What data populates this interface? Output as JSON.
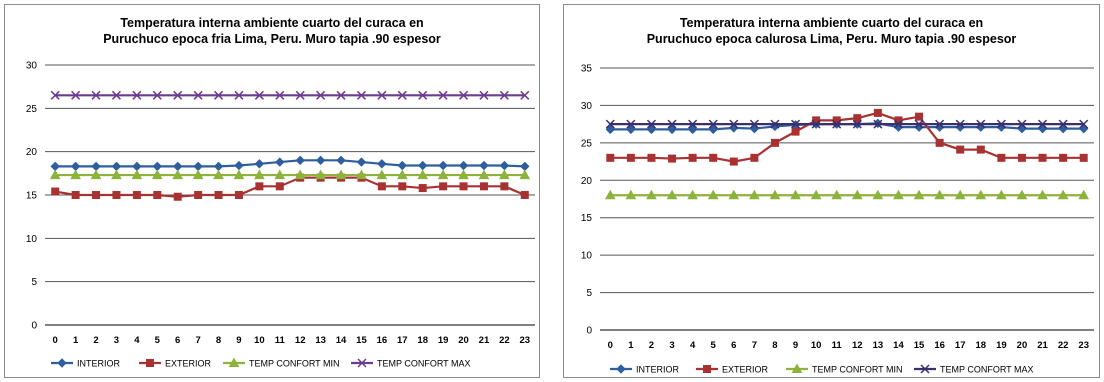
{
  "chart_data": [
    {
      "type": "line",
      "title": [
        "Temperatura interna ambiente cuarto del curaca en",
        "Puruchuco epoca fria Lima, Peru. Muro tapia .90 espesor"
      ],
      "categories": [
        "0",
        "1",
        "2",
        "3",
        "4",
        "5",
        "6",
        "7",
        "8",
        "9",
        "10",
        "11",
        "12",
        "13",
        "14",
        "15",
        "16",
        "17",
        "18",
        "19",
        "20",
        "21",
        "22",
        "23"
      ],
      "ylim": [
        0,
        30
      ],
      "yticks": [
        0,
        5,
        10,
        15,
        20,
        25,
        30
      ],
      "grid": true,
      "legend_position": "bottom",
      "series": [
        {
          "name": "INTERIOR",
          "color": "#2e5e9e",
          "marker": "diamond",
          "values": [
            18.3,
            18.3,
            18.3,
            18.3,
            18.3,
            18.3,
            18.3,
            18.3,
            18.3,
            18.4,
            18.6,
            18.8,
            19.0,
            19.0,
            19.0,
            18.8,
            18.6,
            18.4,
            18.4,
            18.4,
            18.4,
            18.4,
            18.4,
            18.3
          ]
        },
        {
          "name": "EXTERIOR",
          "color": "#a83232",
          "marker": "square",
          "values": [
            15.4,
            15.0,
            15.0,
            15.0,
            15.0,
            15.0,
            14.8,
            15.0,
            15.0,
            15.0,
            16.0,
            16.0,
            17.0,
            17.0,
            17.0,
            17.0,
            16.0,
            16.0,
            15.8,
            16.0,
            16.0,
            16.0,
            16.0,
            15.0
          ]
        },
        {
          "name": "TEMP CONFORT MIN",
          "color": "#8db33c",
          "marker": "triangle",
          "values": [
            17.3,
            17.3,
            17.3,
            17.3,
            17.3,
            17.3,
            17.3,
            17.3,
            17.3,
            17.3,
            17.3,
            17.3,
            17.3,
            17.3,
            17.3,
            17.3,
            17.3,
            17.3,
            17.3,
            17.3,
            17.3,
            17.3,
            17.3,
            17.3
          ]
        },
        {
          "name": "TEMP CONFORT MAX",
          "color": "#6a3d8f",
          "marker": "x",
          "values": [
            26.5,
            26.5,
            26.5,
            26.5,
            26.5,
            26.5,
            26.5,
            26.5,
            26.5,
            26.5,
            26.5,
            26.5,
            26.5,
            26.5,
            26.5,
            26.5,
            26.5,
            26.5,
            26.5,
            26.5,
            26.5,
            26.5,
            26.5,
            26.5
          ]
        }
      ]
    },
    {
      "type": "line",
      "title": [
        "Temperatura interna ambiente cuarto del curaca en",
        "Puruchuco epoca calurosa Lima, Peru. Muro tapia .90 espesor"
      ],
      "categories": [
        "0",
        "1",
        "2",
        "3",
        "4",
        "5",
        "6",
        "7",
        "8",
        "9",
        "10",
        "11",
        "12",
        "13",
        "14",
        "15",
        "16",
        "17",
        "18",
        "19",
        "20",
        "21",
        "22",
        "23"
      ],
      "ylim": [
        0,
        35
      ],
      "yticks": [
        0,
        5,
        10,
        15,
        20,
        25,
        30,
        35
      ],
      "grid": true,
      "legend_position": "bottom",
      "series": [
        {
          "name": "INTERIOR",
          "color": "#2e5e9e",
          "marker": "diamond",
          "values": [
            26.8,
            26.8,
            26.8,
            26.8,
            26.8,
            26.8,
            27.0,
            26.9,
            27.2,
            27.4,
            27.5,
            27.5,
            27.5,
            27.6,
            27.1,
            27.1,
            27.1,
            27.1,
            27.1,
            27.1,
            26.9,
            26.9,
            26.9,
            26.9
          ]
        },
        {
          "name": "EXTERIOR",
          "color": "#a83232",
          "marker": "square",
          "values": [
            23.0,
            23.0,
            23.0,
            22.9,
            23.0,
            23.0,
            22.5,
            23.0,
            25.0,
            26.5,
            28.0,
            28.0,
            28.3,
            29.0,
            28.0,
            28.5,
            25.0,
            24.1,
            24.1,
            23.0,
            23.0,
            23.0,
            23.0,
            23.0
          ]
        },
        {
          "name": "TEMP CONFORT MIN",
          "color": "#8db33c",
          "marker": "triangle",
          "values": [
            18.0,
            18.0,
            18.0,
            18.0,
            18.0,
            18.0,
            18.0,
            18.0,
            18.0,
            18.0,
            18.0,
            18.0,
            18.0,
            18.0,
            18.0,
            18.0,
            18.0,
            18.0,
            18.0,
            18.0,
            18.0,
            18.0,
            18.0,
            18.0
          ]
        },
        {
          "name": "TEMP CONFORT MAX",
          "color": "#3b2f6e",
          "marker": "x",
          "values": [
            27.5,
            27.5,
            27.5,
            27.5,
            27.5,
            27.5,
            27.5,
            27.5,
            27.5,
            27.5,
            27.5,
            27.5,
            27.5,
            27.5,
            27.5,
            27.5,
            27.5,
            27.5,
            27.5,
            27.5,
            27.5,
            27.5,
            27.5,
            27.5
          ]
        }
      ]
    }
  ]
}
